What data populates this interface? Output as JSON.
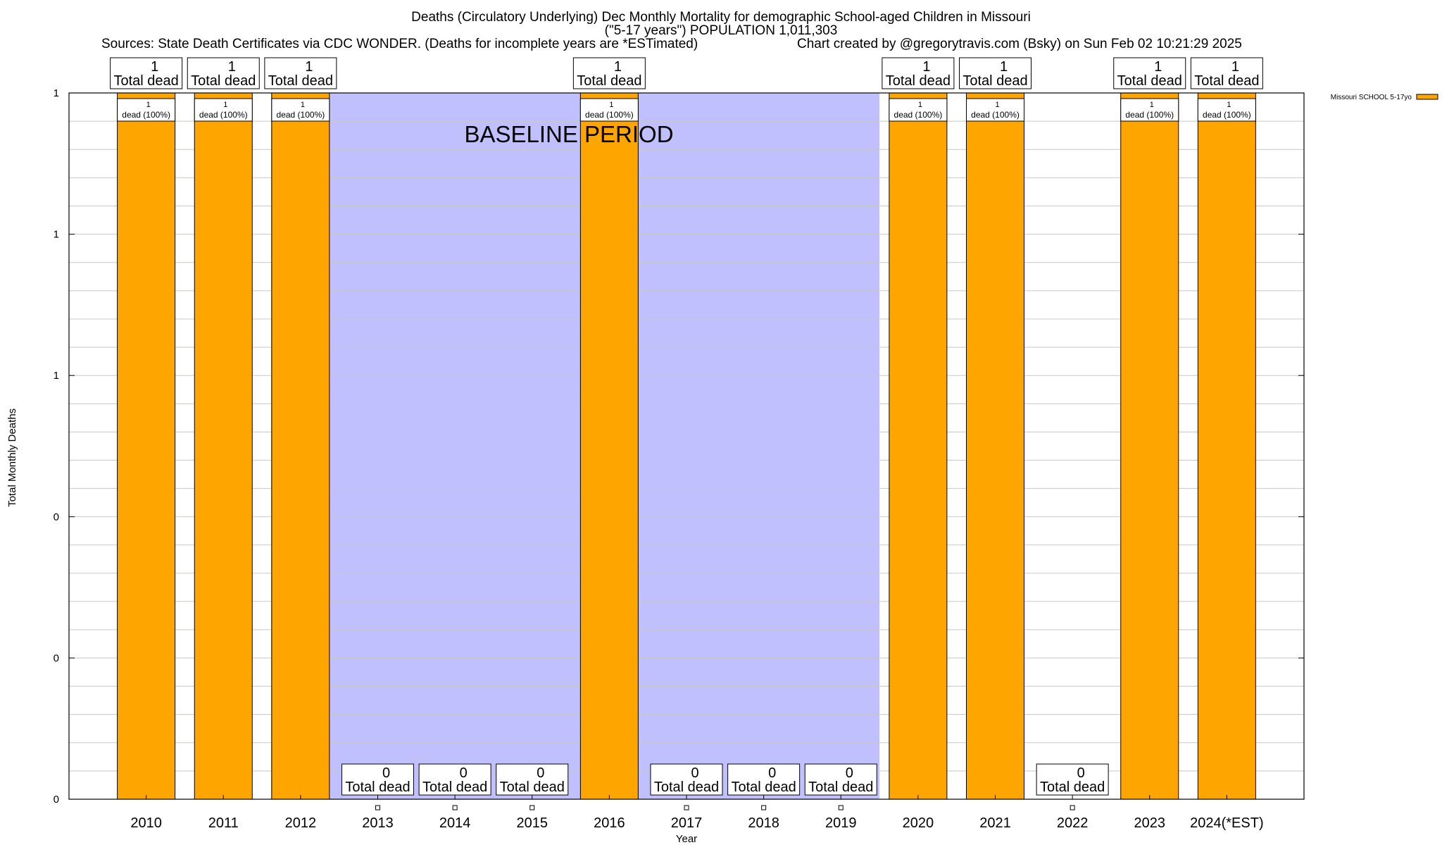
{
  "header": {
    "title_line1": "Deaths (Circulatory Underlying) Dec Monthly Mortality for demographic School-aged Children in Missouri",
    "title_line2": "(\"5-17 years\") POPULATION 1,011,303",
    "sources": "Sources: State Death Certificates via CDC WONDER. (Deaths for incomplete years are *ESTimated)",
    "credit": "Chart created by @gregorytravis.com (Bsky) on Sun Feb 02 10:21:29 2025"
  },
  "chart_data": {
    "type": "bar",
    "title": "Deaths (Circulatory Underlying) Dec Monthly Mortality for demographic School-aged Children in Missouri",
    "subtitle": "(\"5-17 years\") POPULATION 1,011,303",
    "xlabel": "Year",
    "ylabel": "Total Monthly Deaths",
    "categories": [
      "2010",
      "2011",
      "2012",
      "2013",
      "2014",
      "2015",
      "2016",
      "2017",
      "2018",
      "2019",
      "2020",
      "2021",
      "2022",
      "2023",
      "2024(*EST)"
    ],
    "series": [
      {
        "name": "Missouri SCHOOL 5-17yo",
        "color": "#ffa500",
        "values": [
          1,
          1,
          1,
          0,
          0,
          0,
          1,
          0,
          0,
          0,
          1,
          1,
          0,
          1,
          1
        ]
      }
    ],
    "ylim": [
      0,
      1
    ],
    "yticks": [
      {
        "value": 0,
        "label": "0"
      },
      {
        "value": 0.2,
        "label": "0"
      },
      {
        "value": 0.4,
        "label": "0"
      },
      {
        "value": 0.6,
        "label": "1"
      },
      {
        "value": 0.8,
        "label": "1"
      },
      {
        "value": 1.0,
        "label": "1"
      }
    ],
    "top_labels": [
      "1",
      "Total dead"
    ],
    "zero_labels": [
      "0",
      "Total dead"
    ],
    "inner_labels": [
      "1",
      "dead (100%)"
    ],
    "baseline": {
      "label": "BASELINE PERIOD",
      "from_category": "2012",
      "to_category": "2019",
      "color": "#c0c0ff"
    },
    "legend_position": "top-right",
    "grid": true
  }
}
